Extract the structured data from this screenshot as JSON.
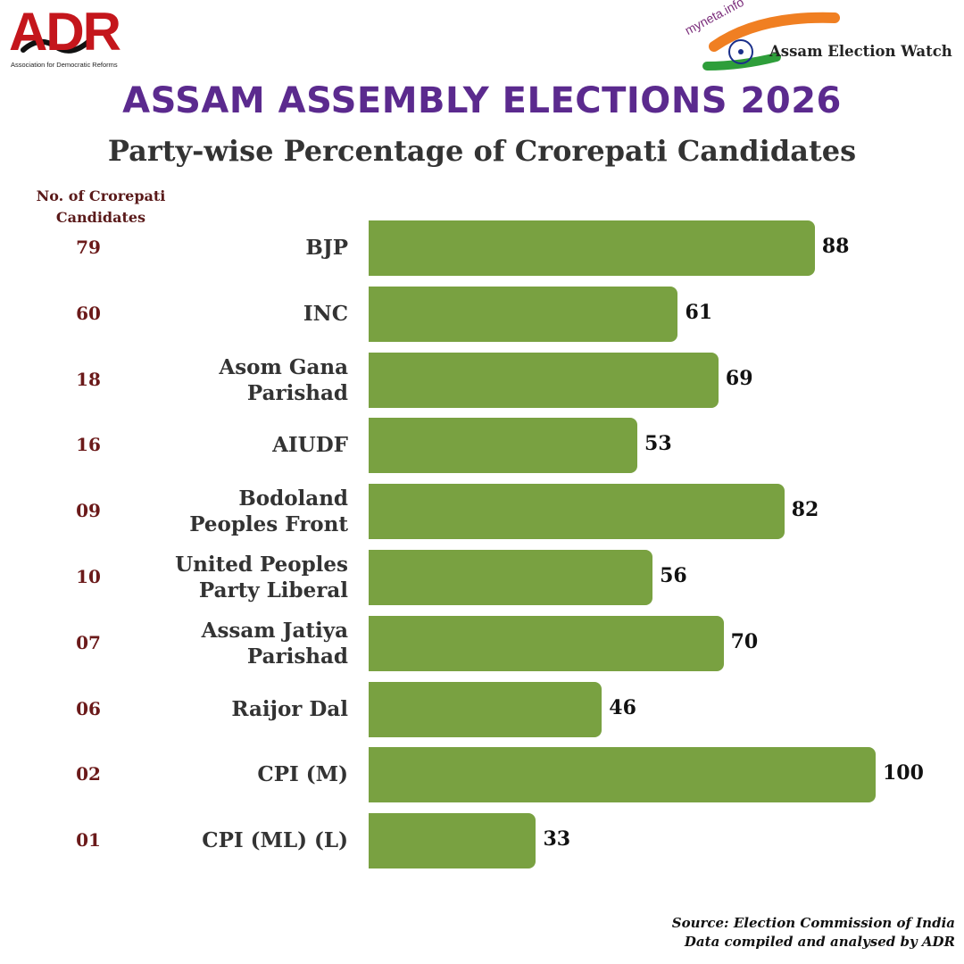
{
  "logos": {
    "adr_text": "ADR",
    "adr_subtitle": "Association for Democratic Reforms",
    "myneta_text": "myneta.info",
    "partner_text": "Assam Election Watch"
  },
  "colors": {
    "bar": "#79a141",
    "title": "#5b2a8e",
    "count": "#6b1a1a"
  },
  "header": {
    "title": "ASSAM ASSEMBLY ELECTIONS 2026",
    "subtitle": "Party-wise Percentage of Crorepati Candidates"
  },
  "count_header": "No. of Crorepati Candidates",
  "chart_data": {
    "type": "bar",
    "orientation": "horizontal",
    "title": "Party-wise Percentage of Crorepati Candidates",
    "categories": [
      "BJP",
      "INC ",
      "Asom Gana Parishad",
      "AIUDF",
      "Bodoland Peoples Front",
      "United Peoples Party Liberal",
      "Assam Jatiya Parishad",
      "Raijor Dal",
      "CPI (M)",
      "CPI (ML) (L)"
    ],
    "values": [
      88,
      61,
      69,
      53,
      82,
      56,
      70,
      46,
      100,
      33
    ],
    "crorepati_counts": [
      "79",
      "60",
      "18",
      "16",
      "09",
      "10",
      "07",
      "06",
      "02",
      "01"
    ],
    "xlim": [
      0,
      100
    ],
    "xlabel": "",
    "ylabel": "",
    "grid": false
  },
  "footer": {
    "source": "Source: Election Commission of India",
    "compiled": "Data compiled and analysed by ADR"
  }
}
